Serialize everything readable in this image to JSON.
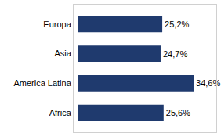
{
  "chart_data": {
    "type": "bar",
    "orientation": "horizontal",
    "categories": [
      "Europa",
      "Asia",
      "America Latina",
      "Africa"
    ],
    "values": [
      25.2,
      24.7,
      34.6,
      25.6
    ],
    "value_labels": [
      "25,2%",
      "24,7%",
      "34,6%",
      "25,6%"
    ],
    "color": "#1f3a6e",
    "xlim": [
      0,
      40
    ],
    "xticks": [],
    "grid": false,
    "data_labels": true,
    "tick_labels": "y"
  }
}
